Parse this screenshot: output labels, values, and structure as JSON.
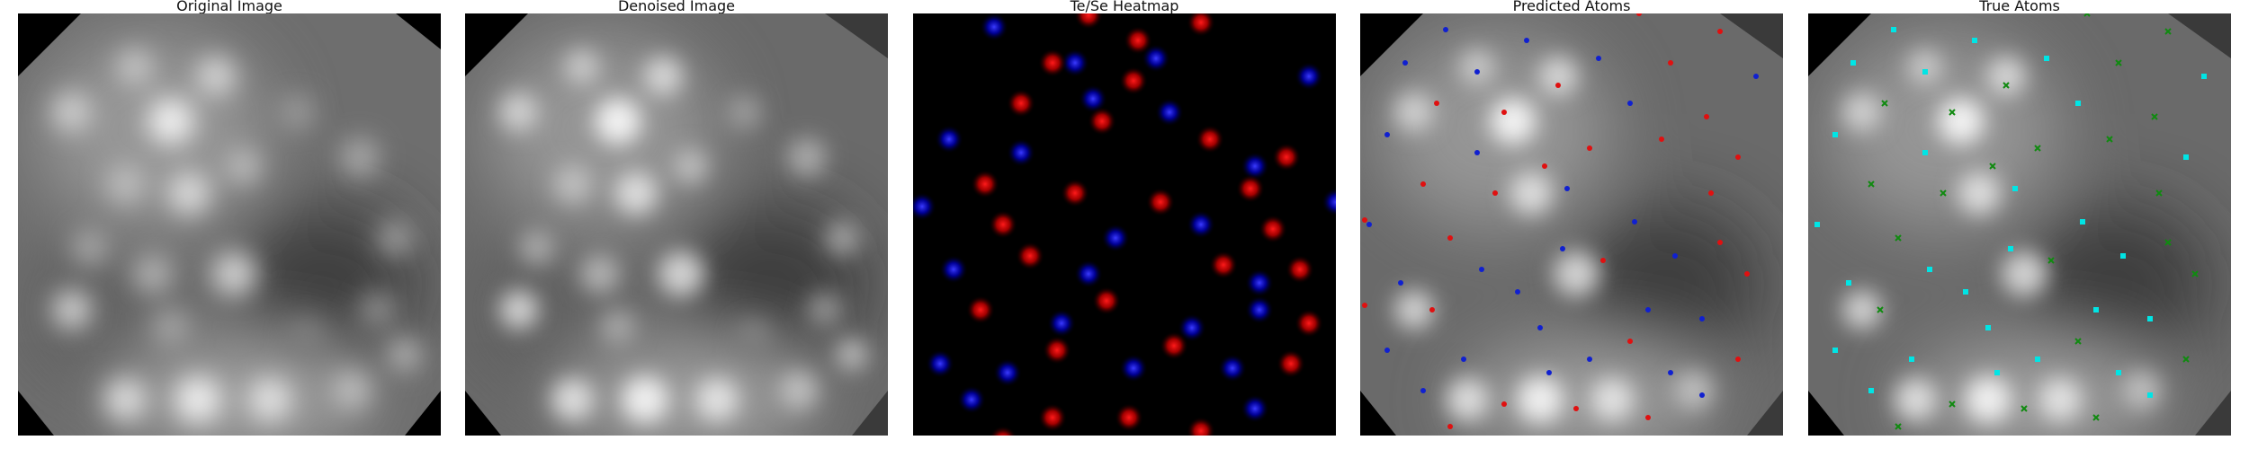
{
  "panels": [
    {
      "id": "original",
      "title": "Original Image"
    },
    {
      "id": "denoised",
      "title": "Denoised Image"
    },
    {
      "id": "heatmap",
      "title": "Te/Se Heatmap"
    },
    {
      "id": "predicted",
      "title": "Predicted Atoms"
    },
    {
      "id": "true",
      "title": "True Atoms"
    }
  ],
  "colors": {
    "heatmap_red": "#ff1a1a",
    "heatmap_blue": "#2626ff",
    "predicted_red": "#e01010",
    "predicted_blue": "#1020d0",
    "true_cyan": "#00e5e5",
    "true_green": "#108a10"
  }
}
